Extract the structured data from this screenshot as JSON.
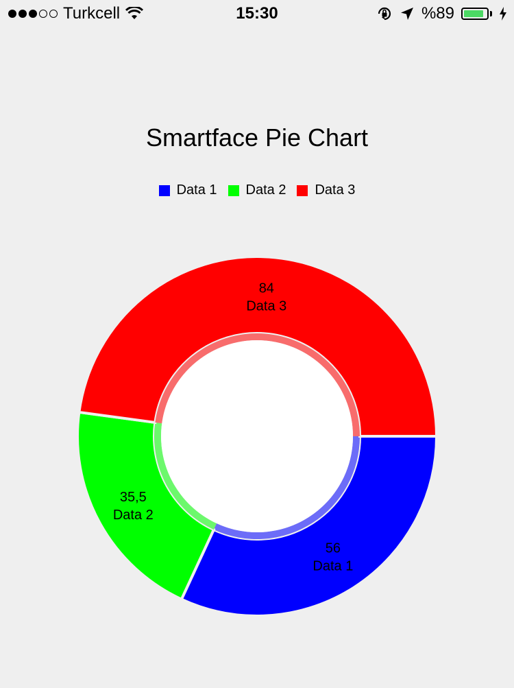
{
  "status_bar": {
    "carrier": "Turkcell",
    "time": "15:30",
    "battery_text": "%89",
    "battery_level": 0.89,
    "signal_bars": 3,
    "signal_total": 5,
    "icons": [
      "wifi-icon",
      "orientation-lock-icon",
      "location-arrow-icon",
      "battery-icon",
      "charging-bolt-icon"
    ]
  },
  "chart_data": {
    "type": "pie",
    "title": "Smartface Pie Chart",
    "hole": true,
    "legend_position": "top-center",
    "slices": [
      {
        "label": "Data 1",
        "value": 56,
        "value_text": "56",
        "color": "#0000ff"
      },
      {
        "label": "Data 2",
        "value": 35.5,
        "value_text": "35,5",
        "color": "#00ff00"
      },
      {
        "label": "Data 3",
        "value": 84,
        "value_text": "84",
        "color": "#ff0000"
      }
    ]
  }
}
